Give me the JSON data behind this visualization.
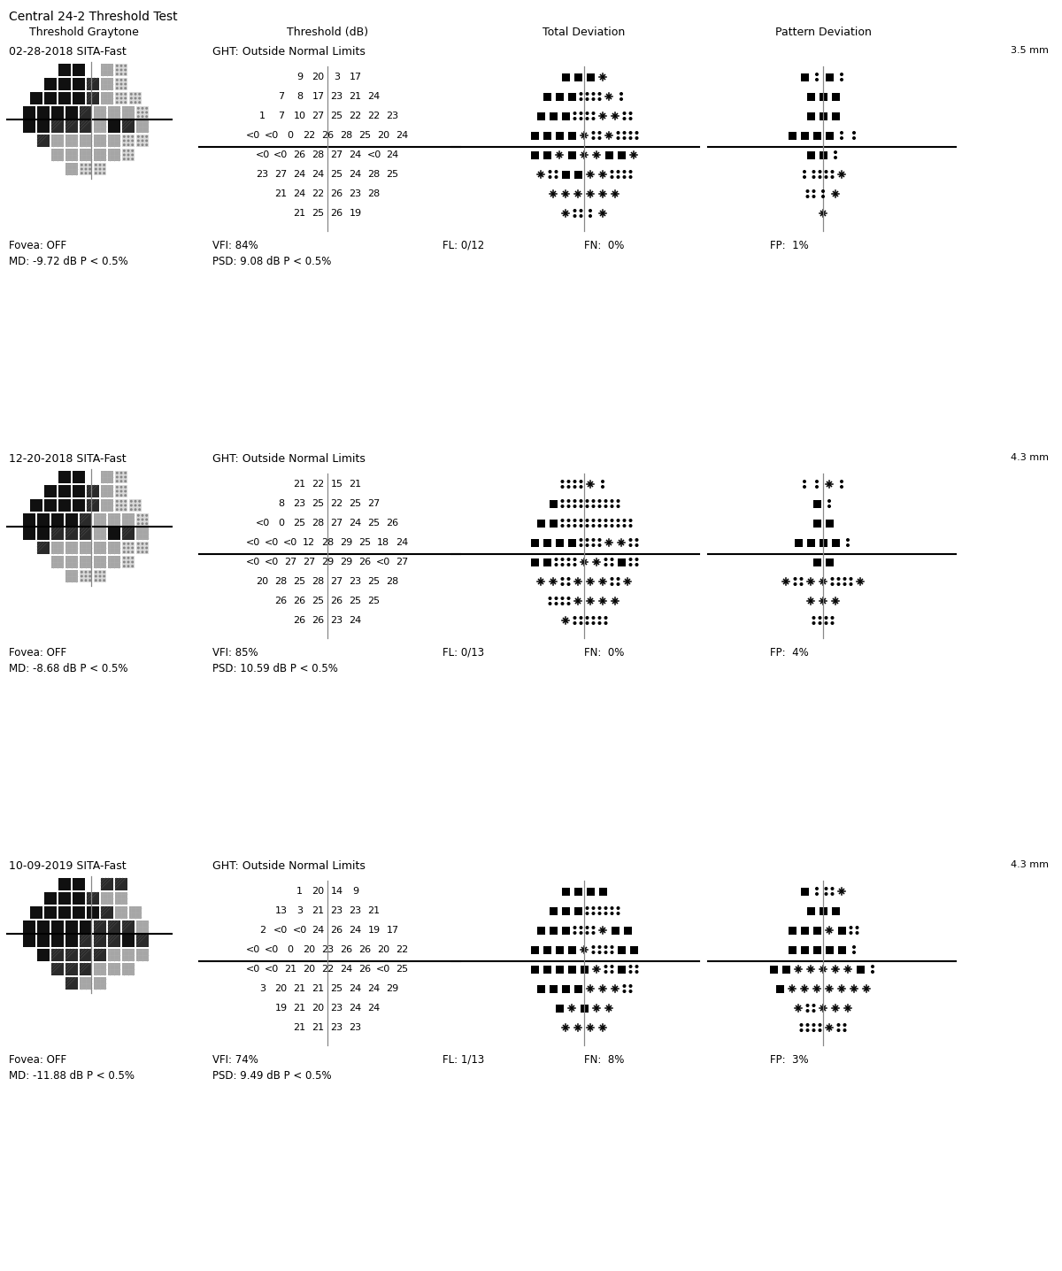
{
  "title": "Central 24-2 Threshold Test",
  "col_headers": [
    "Threshold Graytone",
    "Threshold (dB)",
    "Total Deviation",
    "Pattern Deviation"
  ],
  "tests": [
    {
      "date": "02-28-2018 SITA-Fast",
      "ght": "GHT: Outside Normal Limits",
      "mm": "3.5 mm",
      "threshold_rows_upper": [
        [
          null,
          null,
          "9",
          "20",
          null,
          "3",
          "17",
          null
        ],
        [
          null,
          "7",
          "8",
          "17",
          "23",
          "21",
          "24",
          null
        ],
        [
          "1",
          "7",
          "10",
          "27",
          "25",
          "22",
          "22",
          "23"
        ],
        [
          "<0",
          "<0",
          "0",
          "22",
          "26",
          "28",
          "25",
          "20",
          "24"
        ]
      ],
      "threshold_rows_lower": [
        [
          "<0",
          "<0",
          "26",
          "28",
          "27",
          "24",
          "<0",
          "24"
        ],
        [
          null,
          "23",
          "27",
          "24",
          "24",
          "25",
          "24",
          "28",
          "25"
        ],
        [
          null,
          null,
          "21",
          "24",
          "22",
          "26",
          "23",
          "28",
          null
        ],
        [
          null,
          null,
          null,
          "21",
          "25",
          "26",
          "19",
          null,
          null
        ]
      ],
      "td_upper": [
        [
          null,
          null,
          "B",
          "B",
          null,
          "B",
          "X",
          null
        ],
        [
          null,
          "B",
          "B",
          "B",
          "c",
          "c",
          "X",
          "d"
        ],
        [
          "B",
          "B",
          "B",
          "c",
          "c",
          "X",
          "X",
          "c"
        ],
        [
          "B",
          "B",
          "B",
          "B",
          "X",
          "c",
          "X",
          "c",
          "c"
        ]
      ],
      "td_lower": [
        [
          "B",
          "B",
          "X",
          "B",
          "X",
          "X",
          "B",
          "B",
          "X"
        ],
        [
          null,
          "X",
          "c",
          "B",
          "B",
          "X",
          "X",
          "c",
          "c"
        ],
        [
          null,
          null,
          "X",
          "X",
          "X",
          "X",
          "X",
          "X",
          null
        ],
        [
          null,
          null,
          null,
          "X",
          "c",
          "d",
          "X",
          null,
          null
        ]
      ],
      "pd_upper": [
        [
          null,
          null,
          "B",
          "d",
          null,
          "B",
          "d",
          null
        ],
        [
          null,
          "B",
          "B",
          "B",
          null,
          null,
          null,
          null
        ],
        [
          "B",
          "B",
          "B",
          null,
          null,
          null,
          null,
          null
        ],
        [
          "B",
          "B",
          "B",
          "B",
          null,
          null,
          null,
          "d",
          "d"
        ]
      ],
      "pd_lower": [
        [
          "B",
          "B",
          null,
          null,
          null,
          null,
          null,
          null,
          "d"
        ],
        [
          null,
          "d",
          "c",
          null,
          null,
          null,
          null,
          "c",
          "X"
        ],
        [
          null,
          null,
          null,
          null,
          "c",
          "d",
          "X",
          null,
          null
        ],
        [
          null,
          null,
          null,
          null,
          null,
          null,
          "X",
          null,
          null
        ]
      ],
      "fovea": "Fovea: OFF",
      "vfi": "VFI: 84%",
      "fl": "FL: 0/12",
      "fn": "FN:  0%",
      "fp": "FP:  1%",
      "md": "MD: -9.72 dB P < 0.5%",
      "psd": "PSD: 9.08 dB P < 0.5%"
    },
    {
      "date": "12-20-2018 SITA-Fast",
      "ght": "GHT: Outside Normal Limits",
      "mm": "4.3 mm",
      "threshold_rows_upper": [
        [
          null,
          null,
          "21",
          "22",
          null,
          "15",
          "21",
          null
        ],
        [
          null,
          "8",
          "23",
          "25",
          "22",
          "25",
          "27",
          null
        ],
        [
          "<0",
          "0",
          "25",
          "28",
          "27",
          "24",
          "25",
          "26"
        ],
        [
          "<0",
          "<0",
          "<0",
          "12",
          "28",
          "29",
          "25",
          "18",
          "24"
        ]
      ],
      "threshold_rows_lower": [
        [
          "<0",
          "<0",
          "27",
          "27",
          "29",
          "29",
          "26",
          "<0",
          "27"
        ],
        [
          null,
          "20",
          "28",
          "25",
          "28",
          "27",
          "23",
          "25",
          "28"
        ],
        [
          null,
          null,
          "26",
          "26",
          "25",
          "26",
          "25",
          "25",
          null
        ],
        [
          null,
          null,
          null,
          "26",
          "26",
          "23",
          "24",
          null,
          null
        ]
      ],
      "td_upper": [
        [
          null,
          null,
          "c",
          "c",
          null,
          "X",
          "d",
          null
        ],
        [
          null,
          "B",
          "c",
          "c",
          "c",
          "c",
          "c",
          null
        ],
        [
          "B",
          "B",
          "c",
          "c",
          "c",
          "c",
          "c",
          "c"
        ],
        [
          "B",
          "B",
          "B",
          "B",
          "c",
          "c",
          "X",
          "X",
          "c"
        ]
      ],
      "td_lower": [
        [
          "B",
          "B",
          "c",
          "c",
          "X",
          "X",
          "c",
          "B",
          "c"
        ],
        [
          null,
          "X",
          "X",
          "c",
          "X",
          "X",
          "X",
          "c",
          "X"
        ],
        [
          null,
          null,
          "c",
          "c",
          "X",
          "X",
          "X",
          "X",
          null
        ],
        [
          null,
          null,
          null,
          "X",
          "c",
          "c",
          "c",
          null,
          null
        ]
      ],
      "pd_upper": [
        [
          null,
          null,
          "d",
          "d",
          null,
          "X",
          "d",
          null
        ],
        [
          null,
          "B",
          "d",
          null,
          null,
          null,
          null,
          null
        ],
        [
          "B",
          "B",
          null,
          null,
          null,
          null,
          null,
          null
        ],
        [
          "B",
          "B",
          "B",
          "B",
          null,
          null,
          null,
          null,
          "d"
        ]
      ],
      "pd_lower": [
        [
          "B",
          "B",
          null,
          null,
          null,
          null,
          null,
          null,
          null
        ],
        [
          null,
          "X",
          "c",
          null,
          "X",
          "X",
          "c",
          "c",
          "X"
        ],
        [
          null,
          null,
          null,
          null,
          "X",
          "X",
          "X",
          null,
          null
        ],
        [
          null,
          null,
          null,
          null,
          "c",
          "c",
          null,
          null,
          null
        ]
      ],
      "fovea": "Fovea: OFF",
      "vfi": "VFI: 85%",
      "fl": "FL: 0/13",
      "fn": "FN:  0%",
      "fp": "FP:  4%",
      "md": "MD: -8.68 dB P < 0.5%",
      "psd": "PSD: 10.59 dB P < 0.5%"
    },
    {
      "date": "10-09-2019 SITA-Fast",
      "ght": "GHT: Outside Normal Limits",
      "mm": "4.3 mm",
      "threshold_rows_upper": [
        [
          null,
          null,
          "1",
          "20",
          null,
          "14",
          "9",
          null
        ],
        [
          null,
          "13",
          "3",
          "21",
          "23",
          "23",
          "21",
          null
        ],
        [
          "2",
          "<0",
          "<0",
          "24",
          "26",
          "24",
          "19",
          "17"
        ],
        [
          "<0",
          "<0",
          "0",
          "20",
          "23",
          "26",
          "26",
          "20",
          "22"
        ]
      ],
      "threshold_rows_lower": [
        [
          "<0",
          "<0",
          "21",
          "20",
          "22",
          "24",
          "26",
          "<0",
          "25"
        ],
        [
          null,
          "3",
          "20",
          "21",
          "21",
          "25",
          "24",
          "24",
          "29"
        ],
        [
          null,
          null,
          "19",
          "21",
          "20",
          "23",
          "24",
          "24",
          null
        ],
        [
          null,
          null,
          null,
          "21",
          "21",
          "23",
          "23",
          null,
          null
        ]
      ],
      "td_upper": [
        [
          null,
          null,
          "B",
          "B",
          null,
          "B",
          "B",
          null
        ],
        [
          null,
          "B",
          "B",
          "B",
          "c",
          "c",
          "c",
          null
        ],
        [
          "B",
          "B",
          "B",
          "c",
          "c",
          "X",
          "B",
          "B"
        ],
        [
          "B",
          "B",
          "B",
          "B",
          "X",
          "c",
          "c",
          "B",
          "B"
        ]
      ],
      "td_lower": [
        [
          "B",
          "B",
          "B",
          "B",
          "B",
          "X",
          "c",
          "B",
          "c"
        ],
        [
          null,
          "B",
          "B",
          "B",
          "B",
          "X",
          "X",
          "X",
          "c"
        ],
        [
          null,
          null,
          "B",
          "X",
          "B",
          "X",
          "X",
          null,
          null
        ],
        [
          null,
          null,
          null,
          "X",
          "X",
          "X",
          "X",
          null,
          null
        ]
      ],
      "pd_upper": [
        [
          null,
          null,
          "B",
          "d",
          null,
          "c",
          "X",
          null
        ],
        [
          null,
          "B",
          "B",
          "B",
          null,
          null,
          null,
          null
        ],
        [
          "B",
          "B",
          "B",
          null,
          null,
          "X",
          "B",
          "c"
        ],
        [
          "B",
          "B",
          "B",
          "B",
          null,
          null,
          null,
          "B",
          "d"
        ]
      ],
      "pd_lower": [
        [
          "B",
          "B",
          "X",
          "X",
          "X",
          "X",
          "X",
          "B",
          "d"
        ],
        [
          null,
          "B",
          "X",
          "X",
          "X",
          "X",
          "X",
          "X",
          "X"
        ],
        [
          null,
          null,
          "X",
          "c",
          "X",
          "X",
          "X",
          null,
          null
        ],
        [
          null,
          null,
          null,
          "c",
          "c",
          "X",
          "c",
          null,
          null
        ]
      ],
      "fovea": "Fovea: OFF",
      "vfi": "VFI: 74%",
      "fl": "FL: 1/13",
      "fn": "FN:  8%",
      "fp": "FP:  3%",
      "md": "MD: -11.88 dB P < 0.5%",
      "psd": "PSD: 9.49 dB P < 0.5%"
    }
  ],
  "graytone_upper": [
    [
      [
        null,
        null,
        0,
        0,
        null,
        2,
        3,
        null
      ],
      [
        null,
        0,
        0,
        0,
        1,
        2,
        3,
        null
      ],
      [
        0,
        0,
        0,
        0,
        1,
        2,
        3,
        3
      ],
      [
        0,
        0,
        0,
        0,
        1,
        2,
        2,
        2,
        3
      ]
    ],
    [
      [
        null,
        null,
        0,
        0,
        null,
        2,
        3,
        null
      ],
      [
        null,
        0,
        0,
        0,
        1,
        2,
        3,
        null
      ],
      [
        0,
        0,
        0,
        0,
        1,
        2,
        3,
        3
      ],
      [
        0,
        0,
        0,
        0,
        1,
        2,
        2,
        2,
        3
      ]
    ],
    [
      [
        null,
        null,
        0,
        0,
        null,
        1,
        1,
        null
      ],
      [
        null,
        0,
        0,
        0,
        1,
        2,
        2,
        null
      ],
      [
        0,
        0,
        0,
        0,
        0,
        1,
        2,
        2
      ],
      [
        0,
        0,
        0,
        0,
        0,
        1,
        1,
        1,
        2
      ]
    ]
  ],
  "graytone_lower": [
    [
      [
        0,
        0,
        1,
        1,
        1,
        2,
        0,
        1,
        2
      ],
      [
        null,
        1,
        2,
        2,
        2,
        2,
        2,
        3,
        3
      ],
      [
        null,
        null,
        2,
        2,
        2,
        2,
        2,
        3,
        null
      ],
      [
        null,
        null,
        null,
        2,
        3,
        3,
        null,
        null,
        null
      ]
    ],
    [
      [
        0,
        0,
        1,
        1,
        1,
        2,
        0,
        1,
        2
      ],
      [
        null,
        1,
        2,
        2,
        2,
        2,
        2,
        3,
        3
      ],
      [
        null,
        null,
        2,
        2,
        2,
        2,
        2,
        3,
        null
      ],
      [
        null,
        null,
        null,
        2,
        3,
        3,
        null,
        null,
        null
      ]
    ],
    [
      [
        0,
        0,
        0,
        0,
        1,
        1,
        1,
        0,
        1
      ],
      [
        null,
        0,
        1,
        1,
        1,
        1,
        2,
        2,
        2
      ],
      [
        null,
        null,
        1,
        1,
        1,
        2,
        2,
        2,
        null
      ],
      [
        null,
        null,
        null,
        1,
        2,
        2,
        null,
        null,
        null
      ]
    ]
  ]
}
